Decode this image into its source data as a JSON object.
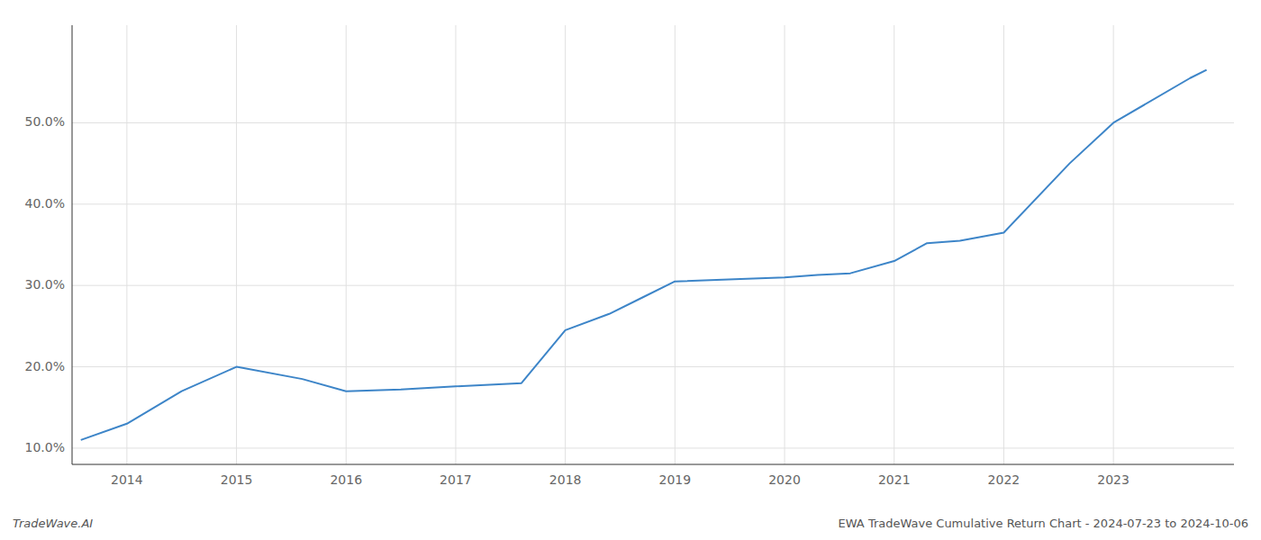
{
  "chart_data": {
    "type": "line",
    "x": [
      2013.58,
      2014.0,
      2014.5,
      2015.0,
      2015.6,
      2016.0,
      2016.5,
      2017.0,
      2017.6,
      2018.0,
      2018.4,
      2018.7,
      2019.0,
      2019.6,
      2020.0,
      2020.3,
      2020.6,
      2021.0,
      2021.3,
      2021.6,
      2022.0,
      2022.6,
      2023.0,
      2023.7,
      2023.85
    ],
    "values": [
      11.0,
      13.0,
      17.0,
      20.0,
      18.5,
      17.0,
      17.2,
      17.6,
      18.0,
      24.5,
      26.5,
      28.5,
      30.5,
      30.8,
      31.0,
      31.3,
      31.5,
      33.0,
      35.2,
      35.5,
      36.5,
      45.0,
      50.0,
      55.5,
      56.5
    ],
    "color": "#3d85c8",
    "xlim": [
      2013.5,
      2024.1
    ],
    "ylim": [
      8.0,
      62.0
    ],
    "xticks": [
      2014,
      2015,
      2016,
      2017,
      2018,
      2019,
      2020,
      2021,
      2022,
      2023
    ],
    "yticks": [
      {
        "value": 10.0,
        "label": "10.0%"
      },
      {
        "value": 20.0,
        "label": "20.0%"
      },
      {
        "value": 30.0,
        "label": "30.0%"
      },
      {
        "value": 40.0,
        "label": "40.0%"
      },
      {
        "value": 50.0,
        "label": "50.0%"
      }
    ],
    "grid": true,
    "annotations": [
      "TradeWave.AI",
      "EWA TradeWave Cumulative Return Chart - 2024-07-23 to 2024-10-06"
    ]
  }
}
